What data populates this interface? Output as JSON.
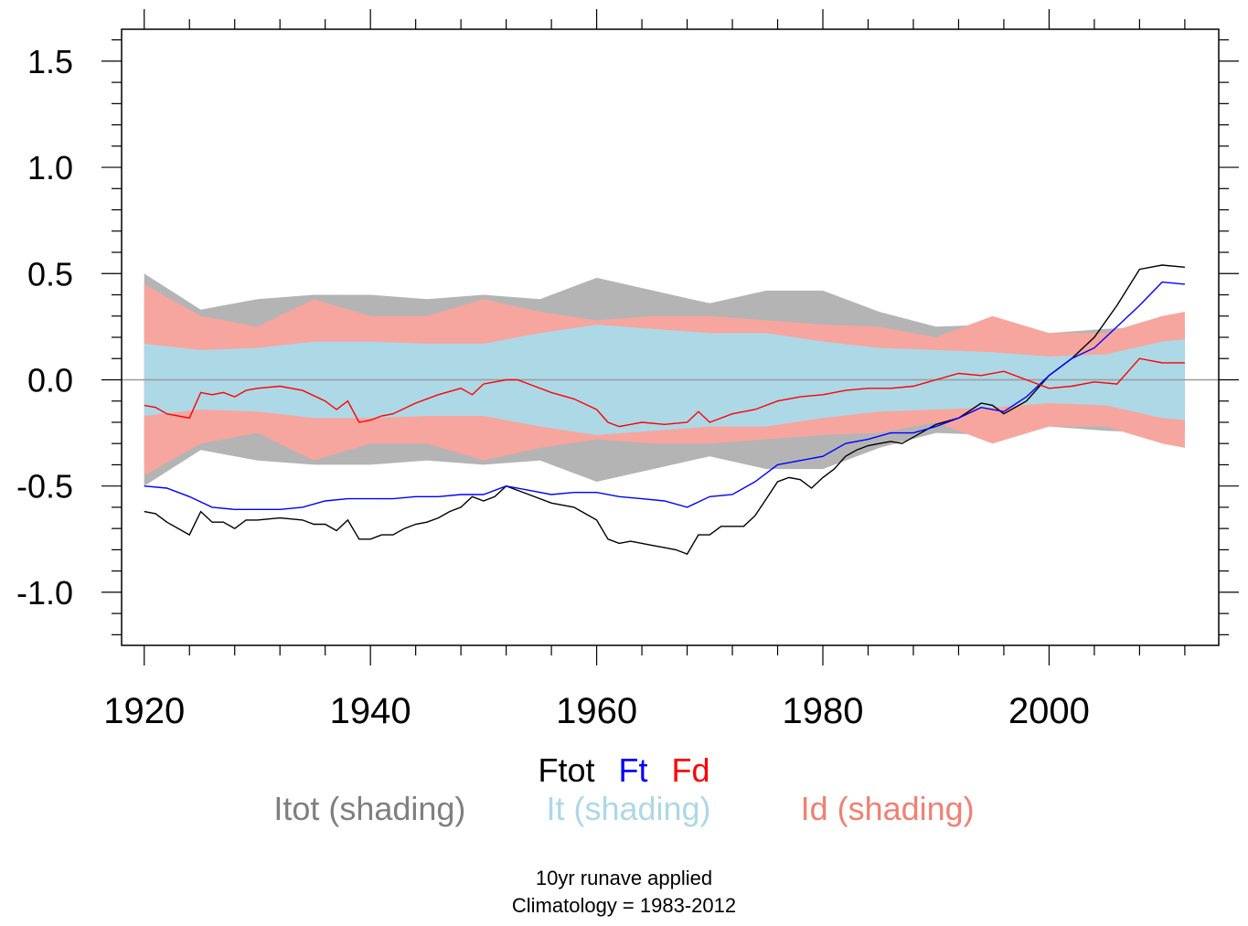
{
  "chart_data": {
    "type": "line",
    "title": "",
    "xlabel": "",
    "ylabel": "",
    "xlim": [
      1918,
      2015
    ],
    "ylim": [
      -1.25,
      1.65
    ],
    "x_major_ticks": [
      1920,
      1940,
      1960,
      1980,
      2000
    ],
    "y_major_ticks": [
      -1.0,
      -0.5,
      0.0,
      0.5,
      1.0,
      1.5
    ],
    "x_tick_labels": [
      "1920",
      "1940",
      "1960",
      "1980",
      "2000"
    ],
    "y_tick_labels": [
      "-1.0",
      "-0.5",
      "0.0",
      "0.5",
      "1.0",
      "1.5"
    ],
    "zero_line": true,
    "bands": [
      {
        "name": "Itot (shading)",
        "color": "#b4b4b4",
        "x": [
          1920,
          1925,
          1930,
          1935,
          1940,
          1945,
          1950,
          1955,
          1960,
          1965,
          1970,
          1975,
          1980,
          1985,
          1990,
          1995,
          2000,
          2005,
          2010,
          2012
        ],
        "upper": [
          0.5,
          0.33,
          0.38,
          0.4,
          0.4,
          0.38,
          0.4,
          0.38,
          0.48,
          0.42,
          0.36,
          0.42,
          0.42,
          0.32,
          0.25,
          0.26,
          0.22,
          0.24,
          0.25,
          0.25
        ],
        "lower": [
          -0.5,
          -0.33,
          -0.38,
          -0.4,
          -0.4,
          -0.38,
          -0.4,
          -0.38,
          -0.48,
          -0.42,
          -0.36,
          -0.42,
          -0.42,
          -0.32,
          -0.25,
          -0.26,
          -0.22,
          -0.24,
          -0.25,
          -0.25
        ]
      },
      {
        "name": "Id (shading)",
        "color": "#f6a69e",
        "x": [
          1920,
          1925,
          1930,
          1935,
          1940,
          1945,
          1950,
          1955,
          1960,
          1965,
          1970,
          1975,
          1980,
          1985,
          1990,
          1995,
          2000,
          2005,
          2010,
          2012
        ],
        "upper": [
          0.45,
          0.3,
          0.25,
          0.38,
          0.3,
          0.3,
          0.38,
          0.32,
          0.28,
          0.3,
          0.3,
          0.28,
          0.26,
          0.25,
          0.2,
          0.3,
          0.22,
          0.22,
          0.3,
          0.32
        ],
        "lower": [
          -0.45,
          -0.3,
          -0.25,
          -0.38,
          -0.3,
          -0.3,
          -0.38,
          -0.32,
          -0.28,
          -0.3,
          -0.3,
          -0.28,
          -0.26,
          -0.25,
          -0.2,
          -0.3,
          -0.22,
          -0.22,
          -0.3,
          -0.32
        ]
      },
      {
        "name": "It (shading)",
        "color": "#add8e6",
        "x": [
          1920,
          1925,
          1930,
          1935,
          1940,
          1945,
          1950,
          1955,
          1960,
          1965,
          1970,
          1975,
          1980,
          1985,
          1990,
          1995,
          2000,
          2005,
          2010,
          2012
        ],
        "upper": [
          0.17,
          0.14,
          0.15,
          0.18,
          0.18,
          0.17,
          0.17,
          0.22,
          0.26,
          0.24,
          0.22,
          0.22,
          0.18,
          0.15,
          0.14,
          0.13,
          0.11,
          0.12,
          0.18,
          0.19
        ],
        "lower": [
          -0.17,
          -0.14,
          -0.15,
          -0.18,
          -0.18,
          -0.17,
          -0.17,
          -0.22,
          -0.26,
          -0.24,
          -0.22,
          -0.22,
          -0.18,
          -0.15,
          -0.14,
          -0.13,
          -0.11,
          -0.12,
          -0.18,
          -0.19
        ]
      }
    ],
    "series": [
      {
        "name": "Ftot",
        "color": "#000000",
        "x": [
          1920,
          1921,
          1922,
          1924,
          1925,
          1926,
          1927,
          1928,
          1929,
          1930,
          1932,
          1934,
          1935,
          1936,
          1937,
          1938,
          1939,
          1940,
          1941,
          1942,
          1943,
          1944,
          1945,
          1946,
          1947,
          1948,
          1949,
          1950,
          1951,
          1952,
          1954,
          1956,
          1958,
          1959,
          1960,
          1961,
          1962,
          1963,
          1964,
          1965,
          1966,
          1967,
          1968,
          1969,
          1970,
          1971,
          1972,
          1973,
          1974,
          1975,
          1976,
          1977,
          1978,
          1979,
          1980,
          1981,
          1982,
          1983,
          1984,
          1985,
          1986,
          1987,
          1988,
          1990,
          1992,
          1994,
          1995,
          1996,
          1998,
          2000,
          2002,
          2004,
          2006,
          2008,
          2010,
          2012
        ],
        "values": [
          -0.62,
          -0.63,
          -0.67,
          -0.73,
          -0.62,
          -0.67,
          -0.67,
          -0.7,
          -0.66,
          -0.66,
          -0.65,
          -0.66,
          -0.68,
          -0.68,
          -0.71,
          -0.66,
          -0.75,
          -0.75,
          -0.73,
          -0.73,
          -0.7,
          -0.68,
          -0.67,
          -0.65,
          -0.62,
          -0.6,
          -0.55,
          -0.57,
          -0.55,
          -0.5,
          -0.54,
          -0.58,
          -0.6,
          -0.63,
          -0.66,
          -0.75,
          -0.77,
          -0.76,
          -0.77,
          -0.78,
          -0.79,
          -0.8,
          -0.82,
          -0.73,
          -0.73,
          -0.69,
          -0.69,
          -0.69,
          -0.64,
          -0.56,
          -0.48,
          -0.46,
          -0.47,
          -0.51,
          -0.46,
          -0.42,
          -0.36,
          -0.33,
          -0.31,
          -0.3,
          -0.29,
          -0.3,
          -0.27,
          -0.21,
          -0.18,
          -0.11,
          -0.12,
          -0.16,
          -0.1,
          0.02,
          0.1,
          0.2,
          0.35,
          0.52,
          0.54,
          0.53
        ]
      },
      {
        "name": "Ft",
        "color": "#0000ff",
        "x": [
          1920,
          1922,
          1924,
          1926,
          1928,
          1930,
          1932,
          1934,
          1936,
          1938,
          1940,
          1942,
          1944,
          1946,
          1948,
          1950,
          1952,
          1954,
          1956,
          1958,
          1960,
          1962,
          1964,
          1966,
          1968,
          1970,
          1972,
          1974,
          1976,
          1978,
          1980,
          1982,
          1984,
          1986,
          1988,
          1990,
          1992,
          1994,
          1996,
          1998,
          2000,
          2002,
          2004,
          2006,
          2008,
          2010,
          2012
        ],
        "values": [
          -0.5,
          -0.51,
          -0.55,
          -0.6,
          -0.61,
          -0.61,
          -0.61,
          -0.6,
          -0.57,
          -0.56,
          -0.56,
          -0.56,
          -0.55,
          -0.55,
          -0.54,
          -0.54,
          -0.5,
          -0.52,
          -0.54,
          -0.53,
          -0.53,
          -0.55,
          -0.56,
          -0.57,
          -0.6,
          -0.55,
          -0.54,
          -0.48,
          -0.4,
          -0.38,
          -0.36,
          -0.3,
          -0.28,
          -0.25,
          -0.25,
          -0.22,
          -0.18,
          -0.13,
          -0.15,
          -0.08,
          0.02,
          0.1,
          0.15,
          0.25,
          0.35,
          0.46,
          0.45
        ]
      },
      {
        "name": "Fd",
        "color": "#ff0000",
        "x": [
          1920,
          1921,
          1922,
          1924,
          1925,
          1926,
          1927,
          1928,
          1929,
          1930,
          1932,
          1934,
          1936,
          1937,
          1938,
          1939,
          1940,
          1941,
          1942,
          1944,
          1946,
          1948,
          1949,
          1950,
          1952,
          1953,
          1954,
          1956,
          1958,
          1960,
          1961,
          1962,
          1963,
          1964,
          1966,
          1968,
          1969,
          1970,
          1972,
          1974,
          1976,
          1978,
          1980,
          1982,
          1984,
          1986,
          1988,
          1990,
          1992,
          1994,
          1996,
          1998,
          2000,
          2002,
          2004,
          2006,
          2008,
          2010,
          2012
        ],
        "values": [
          -0.12,
          -0.13,
          -0.16,
          -0.18,
          -0.06,
          -0.07,
          -0.06,
          -0.08,
          -0.05,
          -0.04,
          -0.03,
          -0.05,
          -0.1,
          -0.14,
          -0.1,
          -0.2,
          -0.19,
          -0.17,
          -0.16,
          -0.11,
          -0.07,
          -0.04,
          -0.07,
          -0.02,
          0.0,
          0.0,
          -0.02,
          -0.06,
          -0.09,
          -0.14,
          -0.2,
          -0.22,
          -0.21,
          -0.2,
          -0.21,
          -0.2,
          -0.15,
          -0.2,
          -0.16,
          -0.14,
          -0.1,
          -0.08,
          -0.07,
          -0.05,
          -0.04,
          -0.04,
          -0.03,
          0.0,
          0.03,
          0.02,
          0.04,
          0.0,
          -0.04,
          -0.03,
          -0.01,
          -0.02,
          0.1,
          0.08,
          0.08
        ]
      }
    ],
    "legend": {
      "lines": [
        {
          "label": "Ftot",
          "color": "#000000"
        },
        {
          "label": "Ft",
          "color": "#0000ff"
        },
        {
          "label": "Fd",
          "color": "#ff0000"
        }
      ],
      "shading": [
        {
          "label": "Itot (shading)",
          "color": "#7f7f7f"
        },
        {
          "label": "It (shading)",
          "color": "#add8e6"
        },
        {
          "label": "Id (shading)",
          "color": "#f08072"
        }
      ]
    },
    "notes": [
      "10yr runave applied",
      "Climatology = 1983-2012"
    ]
  }
}
